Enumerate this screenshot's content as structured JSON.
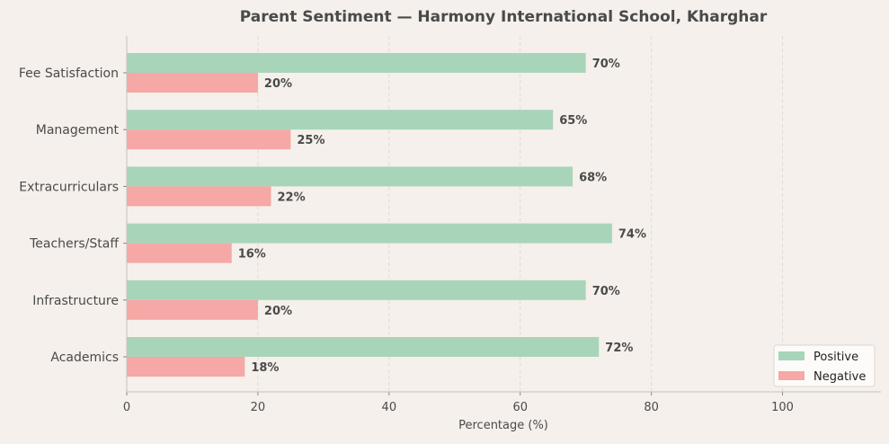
{
  "chart_data": {
    "type": "bar",
    "orientation": "horizontal",
    "title": "Parent Sentiment — Harmony International School, Kharghar",
    "xlabel": "Percentage (%)",
    "ylabel": "",
    "xlim": [
      0,
      115
    ],
    "xticks": [
      0,
      20,
      40,
      60,
      80,
      100
    ],
    "grid": "x dashed",
    "legend_position": "bottom-right",
    "categories": [
      "Academics",
      "Infrastructure",
      "Teachers/Staff",
      "Extracurriculars",
      "Management",
      "Fee Satisfaction"
    ],
    "series": [
      {
        "name": "Positive",
        "color": "#a8d5b9",
        "values": [
          72,
          70,
          74,
          68,
          65,
          70
        ]
      },
      {
        "name": "Negative",
        "color": "#f5a8a5",
        "values": [
          18,
          20,
          16,
          22,
          25,
          20
        ]
      }
    ],
    "data_label_suffix": "%"
  }
}
